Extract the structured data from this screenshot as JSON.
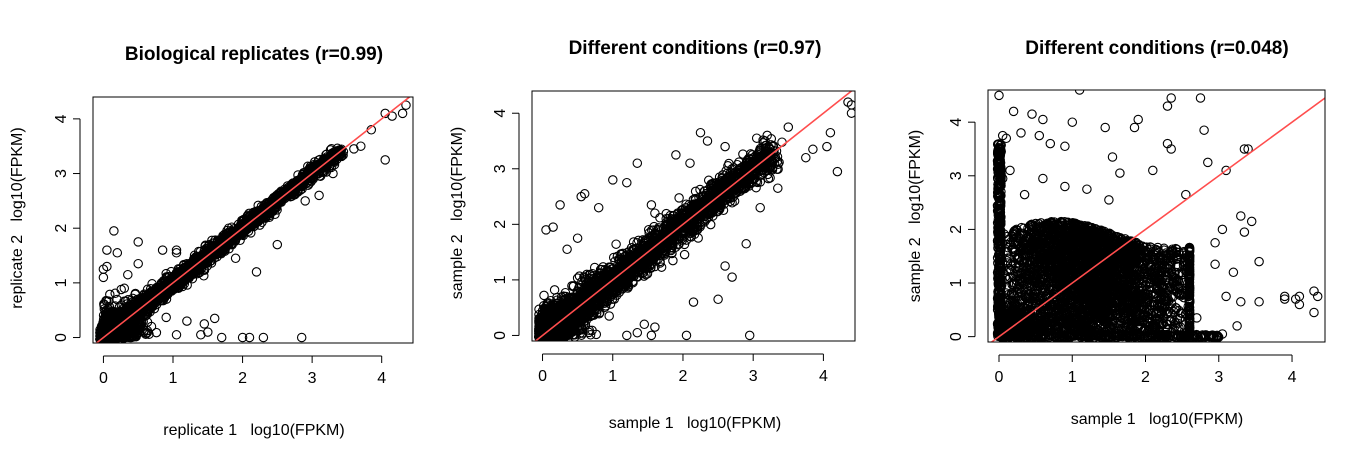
{
  "chart_data": [
    {
      "type": "scatter",
      "title": "Biological replicates (r=0.99)",
      "xlabel": "replicate 1   log10(FPKM)",
      "ylabel": "replicate 2   log10(FPKM)",
      "xlim": [
        -0.15,
        4.45
      ],
      "ylim": [
        -0.1,
        4.4
      ],
      "xticks": [
        "0",
        "1",
        "2",
        "3",
        "4"
      ],
      "yticks": [
        "0",
        "1",
        "2",
        "3",
        "4"
      ],
      "reference_line": {
        "slope": 1,
        "intercept": 0,
        "color": "#ff4d4d"
      },
      "marker": "open-circle",
      "outliers": [
        [
          4.35,
          4.25
        ],
        [
          4.3,
          4.1
        ],
        [
          4.15,
          4.05
        ],
        [
          4.05,
          4.1
        ],
        [
          3.85,
          3.8
        ],
        [
          4.05,
          3.25
        ],
        [
          3.6,
          3.45
        ],
        [
          3.45,
          3.4
        ],
        [
          2.3,
          2.35
        ],
        [
          2.25,
          2.3
        ],
        [
          1.8,
          2.0
        ],
        [
          1.55,
          1.55
        ],
        [
          1.7,
          1.6
        ],
        [
          0.15,
          1.95
        ],
        [
          0.2,
          1.55
        ],
        [
          0.5,
          1.75
        ],
        [
          0.85,
          1.6
        ],
        [
          1.05,
          1.6
        ],
        [
          0.35,
          1.15
        ],
        [
          1.9,
          1.45
        ],
        [
          2.2,
          1.2
        ],
        [
          2.5,
          1.7
        ],
        [
          3.1,
          2.6
        ],
        [
          2.9,
          2.5
        ],
        [
          1.6,
          0.35
        ],
        [
          1.45,
          0.25
        ],
        [
          1.4,
          0.05
        ],
        [
          1.5,
          0.1
        ],
        [
          1.7,
          0.0
        ],
        [
          2.0,
          0.0
        ],
        [
          2.1,
          0.0
        ],
        [
          2.3,
          0.0
        ],
        [
          2.85,
          0.0
        ],
        [
          1.05,
          0.05
        ],
        [
          1.2,
          0.3
        ],
        [
          0.05,
          1.3
        ],
        [
          0.3,
          0.9
        ],
        [
          0.05,
          1.6
        ],
        [
          0.0,
          1.25
        ],
        [
          0.0,
          1.1
        ],
        [
          0.5,
          1.35
        ],
        [
          1.05,
          1.55
        ],
        [
          3.3,
          3.0
        ],
        [
          3.7,
          3.5
        ]
      ]
    },
    {
      "type": "scatter",
      "title": "Different conditions (r=0.97)",
      "xlabel": "sample 1   log10(FPKM)",
      "ylabel": "sample 2   log10(FPKM)",
      "xlim": [
        -0.15,
        4.45
      ],
      "ylim": [
        -0.1,
        4.4
      ],
      "xticks": [
        "0",
        "1",
        "2",
        "3",
        "4"
      ],
      "yticks": [
        "0",
        "1",
        "2",
        "3",
        "4"
      ],
      "reference_line": {
        "slope": 1,
        "intercept": 0,
        "color": "#ff4d4d"
      },
      "marker": "open-circle",
      "outliers": [
        [
          4.35,
          4.2
        ],
        [
          4.4,
          4.15
        ],
        [
          4.4,
          4.0
        ],
        [
          4.1,
          3.65
        ],
        [
          4.05,
          3.4
        ],
        [
          3.85,
          3.35
        ],
        [
          3.75,
          3.2
        ],
        [
          4.2,
          2.95
        ],
        [
          3.35,
          2.65
        ],
        [
          3.5,
          3.75
        ],
        [
          3.2,
          3.6
        ],
        [
          3.05,
          3.55
        ],
        [
          2.25,
          3.65
        ],
        [
          2.35,
          3.5
        ],
        [
          2.6,
          3.4
        ],
        [
          2.7,
          3.0
        ],
        [
          1.35,
          3.1
        ],
        [
          1.0,
          2.8
        ],
        [
          1.2,
          2.75
        ],
        [
          0.6,
          2.55
        ],
        [
          0.55,
          2.5
        ],
        [
          0.25,
          2.35
        ],
        [
          0.8,
          2.3
        ],
        [
          1.55,
          2.35
        ],
        [
          1.9,
          3.25
        ],
        [
          2.1,
          3.1
        ],
        [
          1.6,
          2.2
        ],
        [
          0.15,
          1.95
        ],
        [
          0.05,
          1.9
        ],
        [
          0.35,
          1.55
        ],
        [
          0.5,
          1.75
        ],
        [
          2.6,
          1.25
        ],
        [
          2.7,
          1.05
        ],
        [
          2.9,
          1.65
        ],
        [
          2.95,
          0.0
        ],
        [
          2.5,
          0.65
        ],
        [
          1.6,
          0.15
        ],
        [
          1.55,
          0.0
        ],
        [
          2.05,
          0.0
        ],
        [
          1.35,
          0.05
        ],
        [
          1.45,
          0.2
        ],
        [
          2.15,
          0.6
        ],
        [
          1.2,
          0.0
        ],
        [
          0.95,
          0.35
        ],
        [
          3.1,
          2.3
        ],
        [
          2.4,
          2.7
        ]
      ]
    },
    {
      "type": "scatter",
      "title": "Different conditions (r=0.048)",
      "xlabel": "sample 1   log10(FPKM)",
      "ylabel": "sample 2   log10(FPKM)",
      "xlim": [
        -0.15,
        4.45
      ],
      "ylim": [
        -0.1,
        4.6
      ],
      "xticks": [
        "0",
        "1",
        "2",
        "3",
        "4"
      ],
      "yticks": [
        "0",
        "1",
        "2",
        "3",
        "4"
      ],
      "reference_line": {
        "slope": 1,
        "intercept": 0,
        "color": "#ff4d4d"
      },
      "marker": "open-circle",
      "outliers": [
        [
          0.0,
          4.5
        ],
        [
          1.1,
          4.6
        ],
        [
          0.05,
          3.75
        ],
        [
          0.1,
          3.7
        ],
        [
          0.3,
          3.8
        ],
        [
          0.55,
          3.75
        ],
        [
          0.7,
          3.6
        ],
        [
          0.9,
          3.55
        ],
        [
          1.0,
          4.0
        ],
        [
          0.6,
          4.05
        ],
        [
          0.45,
          4.15
        ],
        [
          0.2,
          4.2
        ],
        [
          1.45,
          3.9
        ],
        [
          1.85,
          3.9
        ],
        [
          1.9,
          4.05
        ],
        [
          2.35,
          4.45
        ],
        [
          2.3,
          4.3
        ],
        [
          2.75,
          4.45
        ],
        [
          2.8,
          3.85
        ],
        [
          2.3,
          3.6
        ],
        [
          2.35,
          3.5
        ],
        [
          2.85,
          3.25
        ],
        [
          3.1,
          3.1
        ],
        [
          3.35,
          3.5
        ],
        [
          3.4,
          3.5
        ],
        [
          2.55,
          2.65
        ],
        [
          3.3,
          2.25
        ],
        [
          3.45,
          2.15
        ],
        [
          3.55,
          1.4
        ],
        [
          3.35,
          1.95
        ],
        [
          3.05,
          2.0
        ],
        [
          2.95,
          1.75
        ],
        [
          3.2,
          1.2
        ],
        [
          3.1,
          0.75
        ],
        [
          3.3,
          0.65
        ],
        [
          3.55,
          0.65
        ],
        [
          3.9,
          0.75
        ],
        [
          4.05,
          0.7
        ],
        [
          4.1,
          0.75
        ],
        [
          4.3,
          0.85
        ],
        [
          4.35,
          0.75
        ],
        [
          4.3,
          0.45
        ],
        [
          4.1,
          0.6
        ],
        [
          3.9,
          0.7
        ],
        [
          3.25,
          0.2
        ],
        [
          3.05,
          0.05
        ],
        [
          2.9,
          0.0
        ],
        [
          2.7,
          0.35
        ],
        [
          2.6,
          0.85
        ],
        [
          1.5,
          2.55
        ],
        [
          1.2,
          2.75
        ],
        [
          0.9,
          2.8
        ],
        [
          0.6,
          2.95
        ],
        [
          0.35,
          2.65
        ],
        [
          2.1,
          3.1
        ],
        [
          1.65,
          3.05
        ],
        [
          1.55,
          3.35
        ],
        [
          0.15,
          3.1
        ],
        [
          0.05,
          2.95
        ],
        [
          2.95,
          1.35
        ]
      ]
    }
  ]
}
